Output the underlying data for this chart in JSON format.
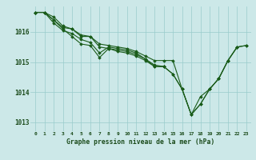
{
  "xlabel": "Graphe pression niveau de la mer (hPa)",
  "x_ticks": [
    0,
    1,
    2,
    3,
    4,
    5,
    6,
    7,
    8,
    9,
    10,
    11,
    12,
    13,
    14,
    15,
    16,
    17,
    18,
    19,
    20,
    21,
    22,
    23
  ],
  "ylim": [
    1012.7,
    1016.85
  ],
  "yticks": [
    1013,
    1014,
    1015,
    1016
  ],
  "bg_color": "#cce8e8",
  "grid_color": "#99cccc",
  "line_color": "#1a5c1a",
  "series": [
    [
      1016.65,
      1016.65,
      1016.5,
      1016.2,
      1016.1,
      1015.85,
      1015.85,
      1015.6,
      1015.55,
      1015.5,
      1015.45,
      1015.35,
      1015.2,
      1015.05,
      1015.05,
      1015.05,
      1014.1,
      1013.25,
      1013.85,
      1014.1,
      1014.45,
      1015.05,
      1015.5,
      null
    ],
    [
      1016.65,
      1016.65,
      1016.4,
      1016.15,
      1016.1,
      1015.9,
      1015.85,
      1015.5,
      1015.45,
      1015.35,
      1015.3,
      1015.2,
      1015.05,
      1014.85,
      1014.85,
      null,
      null,
      null,
      null,
      null,
      null,
      null,
      null,
      null
    ],
    [
      1016.65,
      1016.65,
      1016.3,
      1016.05,
      1015.95,
      1015.75,
      1015.65,
      1015.3,
      1015.5,
      1015.45,
      1015.4,
      1015.3,
      1015.1,
      1014.9,
      1014.85,
      1014.6,
      1014.1,
      1013.25,
      1013.6,
      1014.1,
      1014.45,
      1015.05,
      1015.5,
      1015.55
    ],
    [
      1016.65,
      1016.65,
      1016.4,
      1016.1,
      1015.85,
      1015.6,
      1015.55,
      1015.15,
      1015.45,
      1015.4,
      1015.35,
      1015.25,
      1015.1,
      1014.85,
      1014.85,
      1014.6,
      1014.1,
      1013.25,
      1013.6,
      1014.1,
      1014.45,
      1015.05,
      1015.5,
      1015.55
    ]
  ]
}
